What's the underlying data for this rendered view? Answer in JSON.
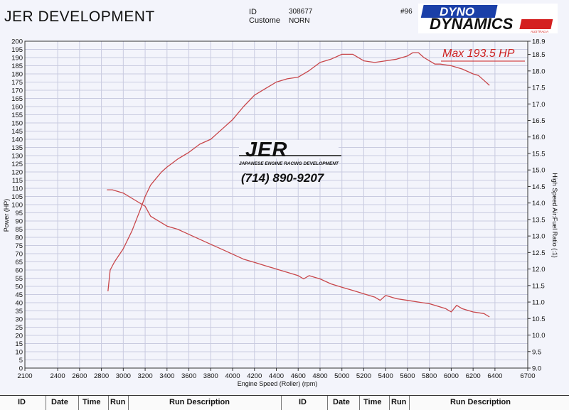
{
  "header": {
    "title": "JER DEVELOPMENT",
    "id_label": "ID",
    "id_value": "308677",
    "customer_label": "Custome",
    "customer_value": "NORN",
    "sheet_number": "#96"
  },
  "brand": {
    "line1": "DYNO",
    "line2": "DYNAMICS",
    "tagline": "AUSTRALIA",
    "colors": {
      "blue": "#1a3fa8",
      "red": "#d42020",
      "black": "#111111"
    }
  },
  "overlay": {
    "jer_mark": "JER",
    "jer_subtitle": "JAPANESE ENGINE RACING DEVELOPMENT",
    "phone": "(714) 890-9207",
    "max_label": "Max 193.5 HP"
  },
  "chart_data": {
    "type": "line",
    "xlabel": "Engine Speed (Roller) (rpm)",
    "ylabel": "Power (HP)",
    "y2label": "High Speed Air:Fuel Ratio (:1)",
    "xlim": [
      2100,
      6700
    ],
    "ylim": [
      0,
      200
    ],
    "y2lim": [
      9.0,
      18.9
    ],
    "x_ticks": [
      2100,
      2400,
      2600,
      2800,
      3000,
      3200,
      3400,
      3600,
      3800,
      4000,
      4200,
      4400,
      4600,
      4800,
      5000,
      5200,
      5400,
      5600,
      5800,
      6000,
      6200,
      6400,
      6700
    ],
    "y_ticks": [
      0,
      5,
      10,
      15,
      20,
      25,
      30,
      35,
      40,
      45,
      50,
      55,
      60,
      65,
      70,
      75,
      80,
      85,
      90,
      95,
      100,
      105,
      110,
      115,
      120,
      125,
      130,
      135,
      140,
      145,
      150,
      155,
      160,
      165,
      170,
      175,
      180,
      185,
      190,
      195,
      200
    ],
    "y2_ticks": [
      9.0,
      9.5,
      10.0,
      10.5,
      11.0,
      11.5,
      12.0,
      12.5,
      13.0,
      13.5,
      14.0,
      14.5,
      15.0,
      15.5,
      16.0,
      16.5,
      17.0,
      17.5,
      18.0,
      18.5,
      18.9
    ],
    "grid": true,
    "color": "#c8464a",
    "series": [
      {
        "axis": "left",
        "x": [
          2860,
          2880,
          2920,
          3000,
          3080,
          3150,
          3200,
          3250,
          3300,
          3350,
          3400,
          3500,
          3600,
          3700,
          3800,
          3900,
          4000,
          4100,
          4200,
          4300,
          4400,
          4500,
          4600,
          4700,
          4800,
          4900,
          5000,
          5100,
          5200,
          5300,
          5400,
          5500,
          5600,
          5650,
          5700,
          5750,
          5800,
          5850,
          5900,
          6000,
          6100,
          6200,
          6250,
          6300,
          6350
        ],
        "y": [
          47,
          60,
          65,
          73,
          84,
          96,
          105,
          112,
          116,
          120,
          123,
          128,
          132,
          137,
          140,
          146,
          152,
          160,
          167,
          171,
          175,
          177,
          178,
          182,
          187,
          189,
          192,
          192,
          188,
          187,
          188,
          189,
          191,
          193,
          193,
          190,
          188,
          186,
          186,
          185,
          183,
          180,
          179,
          176,
          173
        ]
      },
      {
        "axis": "right",
        "x": [
          2850,
          2900,
          3000,
          3100,
          3200,
          3250,
          3300,
          3400,
          3500,
          3600,
          3700,
          3800,
          3900,
          4000,
          4100,
          4200,
          4300,
          4400,
          4500,
          4600,
          4650,
          4700,
          4750,
          4800,
          4900,
          5000,
          5100,
          5200,
          5300,
          5350,
          5400,
          5500,
          5600,
          5700,
          5800,
          5900,
          5950,
          6000,
          6050,
          6100,
          6200,
          6300,
          6350
        ],
        "y": [
          14.4,
          14.4,
          14.3,
          14.1,
          13.9,
          13.6,
          13.5,
          13.3,
          13.2,
          13.05,
          12.9,
          12.75,
          12.6,
          12.45,
          12.3,
          12.2,
          12.1,
          12.0,
          11.9,
          11.8,
          11.7,
          11.8,
          11.75,
          11.7,
          11.55,
          11.45,
          11.35,
          11.25,
          11.15,
          11.05,
          11.2,
          11.1,
          11.05,
          11.0,
          10.95,
          10.85,
          10.8,
          10.7,
          10.9,
          10.8,
          10.7,
          10.65,
          10.55
        ]
      }
    ]
  },
  "run_table": {
    "headers": [
      "ID",
      "Date",
      "Time",
      "Run",
      "Run Description",
      "ID",
      "Date",
      "Time",
      "Run",
      "Run Description"
    ]
  }
}
